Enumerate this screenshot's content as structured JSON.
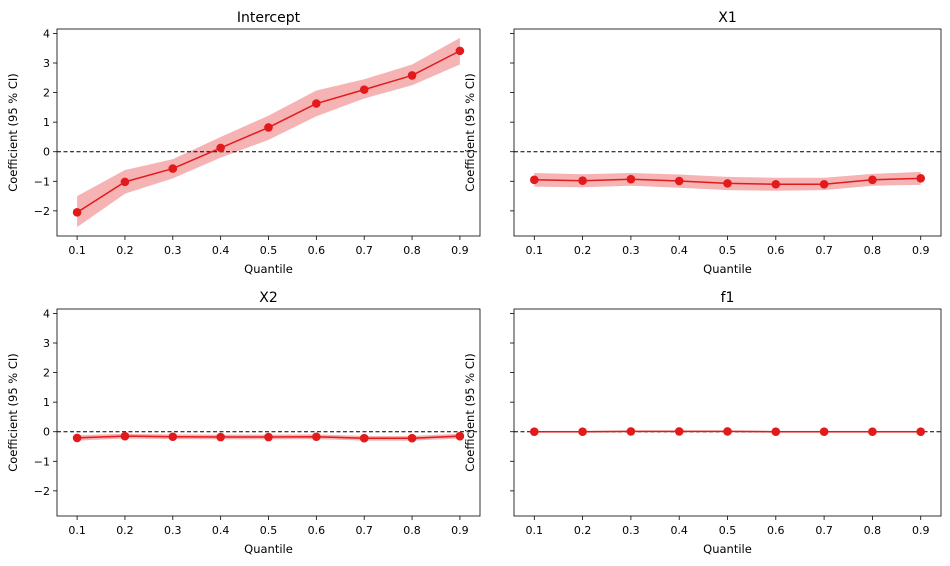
{
  "colors": {
    "line": "#e31a1c",
    "band": "#f4a6a6",
    "zero_line": "#000000"
  },
  "chart_data": [
    {
      "type": "line",
      "title": "Intercept",
      "xlabel": "Quantile",
      "ylabel": "Coefficient (95 % CI)",
      "x": [
        0.1,
        0.2,
        0.3,
        0.4,
        0.5,
        0.6,
        0.7,
        0.8,
        0.9
      ],
      "xticks": [
        "0.1",
        "0.2",
        "0.3",
        "0.4",
        "0.5",
        "0.6",
        "0.7",
        "0.8",
        "0.9"
      ],
      "yticks": [
        "−2",
        "−1",
        "0",
        "1",
        "2",
        "3",
        "4"
      ],
      "ylim": [
        -2.85,
        4.15
      ],
      "reference_line": 0,
      "series": [
        {
          "values": [
            -2.05,
            -1.02,
            -0.57,
            0.13,
            0.82,
            1.63,
            2.1,
            2.58,
            3.41
          ],
          "ci_lower": [
            -2.55,
            -1.42,
            -0.9,
            -0.2,
            0.4,
            1.2,
            1.8,
            2.25,
            2.95
          ],
          "ci_upper": [
            -1.5,
            -0.62,
            -0.25,
            0.5,
            1.22,
            2.07,
            2.45,
            2.95,
            3.85
          ]
        }
      ]
    },
    {
      "type": "line",
      "title": "X1",
      "xlabel": "Quantile",
      "ylabel": "Coefficient (95 % CI)",
      "x": [
        0.1,
        0.2,
        0.3,
        0.4,
        0.5,
        0.6,
        0.7,
        0.8,
        0.9
      ],
      "xticks": [
        "0.1",
        "0.2",
        "0.3",
        "0.4",
        "0.5",
        "0.6",
        "0.7",
        "0.8",
        "0.9"
      ],
      "yticks": [],
      "ylim": [
        -2.85,
        4.15
      ],
      "reference_line": 0,
      "series": [
        {
          "values": [
            -0.95,
            -0.98,
            -0.93,
            -0.99,
            -1.07,
            -1.1,
            -1.1,
            -0.95,
            -0.9
          ],
          "ci_lower": [
            -1.18,
            -1.2,
            -1.15,
            -1.22,
            -1.3,
            -1.32,
            -1.3,
            -1.15,
            -1.12
          ],
          "ci_upper": [
            -0.72,
            -0.76,
            -0.72,
            -0.77,
            -0.85,
            -0.88,
            -0.88,
            -0.75,
            -0.68
          ]
        }
      ]
    },
    {
      "type": "line",
      "title": "X2",
      "xlabel": "Quantile",
      "ylabel": "Coefficient (95 % CI)",
      "x": [
        0.1,
        0.2,
        0.3,
        0.4,
        0.5,
        0.6,
        0.7,
        0.8,
        0.9
      ],
      "xticks": [
        "0.1",
        "0.2",
        "0.3",
        "0.4",
        "0.5",
        "0.6",
        "0.7",
        "0.8",
        "0.9"
      ],
      "yticks": [
        "−2",
        "−1",
        "0",
        "1",
        "2",
        "3",
        "4"
      ],
      "ylim": [
        -2.85,
        4.15
      ],
      "reference_line": 0,
      "series": [
        {
          "values": [
            -0.21,
            -0.15,
            -0.17,
            -0.18,
            -0.18,
            -0.17,
            -0.22,
            -0.22,
            -0.15
          ],
          "ci_lower": [
            -0.3,
            -0.23,
            -0.25,
            -0.26,
            -0.26,
            -0.25,
            -0.3,
            -0.3,
            -0.23
          ],
          "ci_upper": [
            -0.12,
            -0.07,
            -0.09,
            -0.1,
            -0.1,
            -0.09,
            -0.14,
            -0.14,
            -0.07
          ]
        }
      ]
    },
    {
      "type": "line",
      "title": "f1",
      "xlabel": "Quantile",
      "ylabel": "Coefficient (95 % CI)",
      "x": [
        0.1,
        0.2,
        0.3,
        0.4,
        0.5,
        0.6,
        0.7,
        0.8,
        0.9
      ],
      "xticks": [
        "0.1",
        "0.2",
        "0.3",
        "0.4",
        "0.5",
        "0.6",
        "0.7",
        "0.8",
        "0.9"
      ],
      "yticks": [],
      "ylim": [
        -2.85,
        4.15
      ],
      "reference_line": 0,
      "series": [
        {
          "values": [
            0.0,
            0.0,
            0.01,
            0.01,
            0.01,
            0.0,
            0.0,
            0.0,
            0.0
          ],
          "ci_lower": [
            -0.03,
            -0.03,
            -0.02,
            -0.02,
            -0.02,
            -0.03,
            -0.03,
            -0.03,
            -0.03
          ],
          "ci_upper": [
            0.03,
            0.03,
            0.04,
            0.04,
            0.04,
            0.03,
            0.03,
            0.03,
            0.03
          ]
        }
      ]
    }
  ]
}
